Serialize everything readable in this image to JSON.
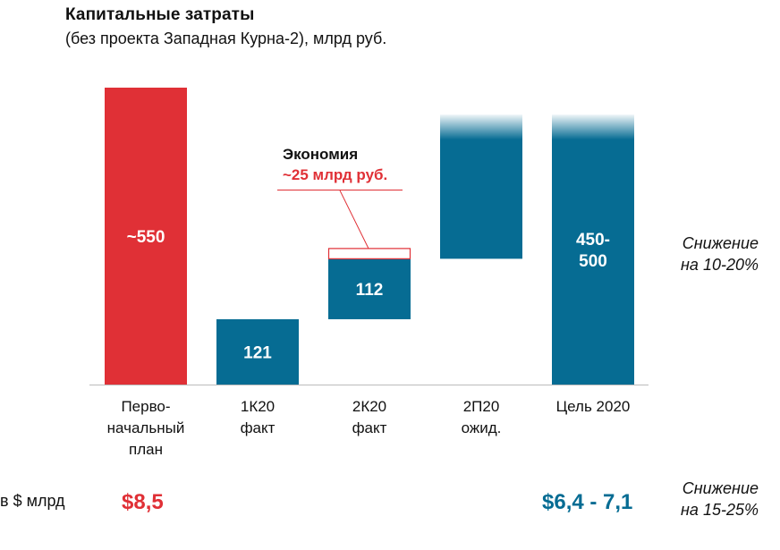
{
  "header": {
    "title": "Капитальные затраты",
    "subtitle": "(без проекта Западная Курна-2), млрд руб."
  },
  "colors": {
    "red": "#e03036",
    "blue": "#066c93",
    "axis": "#bbbbbb"
  },
  "chart_data": {
    "type": "bar",
    "categories": [
      [
        "Перво-",
        "начальный",
        "план"
      ],
      [
        "1К20",
        "факт"
      ],
      [
        "2К20",
        "факт"
      ],
      [
        "2П20",
        "ожид."
      ],
      [
        "Цель 2020"
      ]
    ],
    "bars": [
      {
        "low": 0,
        "high": 550,
        "color": "red",
        "labels": [
          "~550"
        ]
      },
      {
        "low": 0,
        "high": 121,
        "color": "blue",
        "labels": [
          "121"
        ]
      },
      {
        "low": 121,
        "high": 233,
        "color": "blue",
        "labels": [
          "112"
        ],
        "savings_top": 252
      },
      {
        "low": 233,
        "high": 500,
        "color": "blue",
        "labels": [],
        "faded_top": true
      },
      {
        "low": 0,
        "high": 500,
        "color": "blue",
        "labels": [
          "450-",
          "500"
        ],
        "faded_top": true
      }
    ],
    "annotation": {
      "line1": "Экономия",
      "line2": "~25 млрд руб."
    }
  },
  "notes": {
    "reduction_rub_line1": "Снижение",
    "reduction_rub_line2": "на 10-20%",
    "reduction_usd_line1": "Снижение",
    "reduction_usd_line2": "на 15-25%"
  },
  "usd_row": {
    "label": "в $ млрд",
    "initial": "$8,5",
    "target": "$6,4 - 7,1"
  }
}
